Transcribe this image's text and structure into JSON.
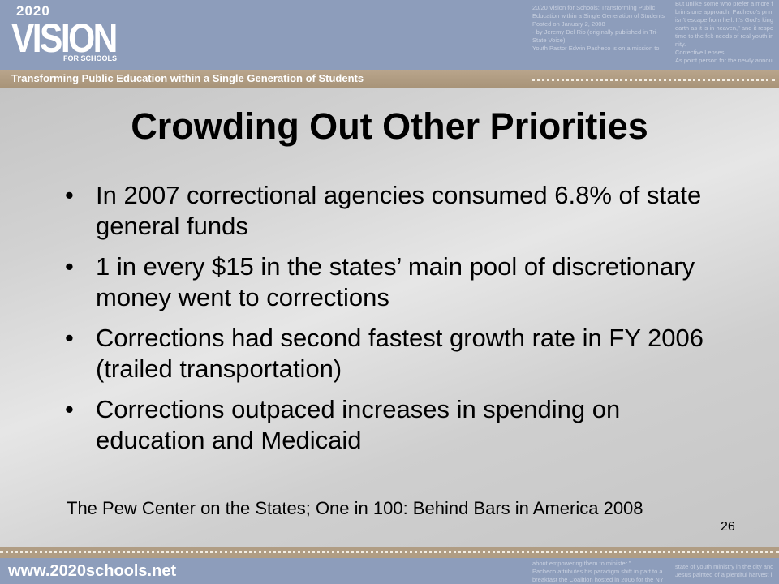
{
  "header": {
    "logo": {
      "year": "2020",
      "word": "VISION",
      "sub": "FOR SCHOOLS"
    },
    "tagline": "Transforming Public Education within a Single Generation of Students",
    "article_left": [
      "20/20 Vision for Schools: Transforming Public",
      "Education within a Single Generation of Students",
      "Posted on January 2, 2008",
      "- by Jeremy Del Rio (originally published in Tri-",
      "State Voice)",
      "Youth Pastor Edwin Pacheco is on a mission to"
    ],
    "article_right": [
      "But unlike some who prefer a more f",
      "brimstone approach, Pacheco's prim",
      "isn't escape from hell. It's God's king",
      "earth as it is in heaven,\" and it respo",
      "time to the felt-needs of real youth in",
      "nity.",
      "Corrective Lenses",
      "As point person for the newly annou"
    ]
  },
  "slide": {
    "title": "Crowding Out Other Priorities",
    "bullets": [
      "In 2007 correctional agencies consumed 6.8% of state general funds",
      "1 in every $15 in the states’ main pool of discretionary money went to corrections",
      "Corrections had second fastest growth rate in FY 2006 (trailed transportation)",
      "Corrections outpaced increases in spending on education and Medicaid"
    ],
    "source": "The Pew Center on the States; One in 100: Behind Bars in America 2008",
    "page_number": "26"
  },
  "footer": {
    "url": "www.2020schools.net",
    "article_left": [
      "about empowering them to minister.\"",
      "Pacheco attributes his paradigm shift in part to a",
      "breakfast the Coalition hosted in 2006 for the NY"
    ],
    "article_right": [
      "state of youth ministry in the city and",
      "Jesus painted of a plentiful harvest i"
    ]
  }
}
